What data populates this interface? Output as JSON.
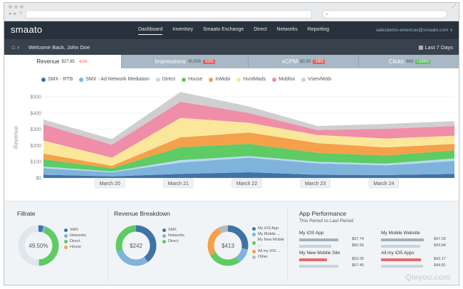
{
  "browser": {
    "nav_back": "◂",
    "nav_forward": "▸",
    "new_tab": "+"
  },
  "app": {
    "logo": "smaato",
    "menu": [
      "Dashboard",
      "Inventory",
      "Smaato Exchange",
      "Direct",
      "Networks",
      "Reporting"
    ],
    "active_menu": "Dashboard",
    "account": "salesdemo-americas@smaato.com ∨"
  },
  "subbar": {
    "breadcrumb_sep": "›",
    "welcome": "Welcome Back, John Doe",
    "date_range": "Last 7 Days"
  },
  "tabs": [
    {
      "label": "Revenue",
      "value": "$27.85",
      "change": "-61%",
      "trend": "neg",
      "active": true
    },
    {
      "label": "Impressions",
      "value": "30,009",
      "change": "-52%",
      "trend": "neg",
      "active": false
    },
    {
      "label": "eCPM",
      "value": "$0.93",
      "change": "-18%",
      "trend": "neg",
      "active": false
    },
    {
      "label": "Clicks",
      "value": "960",
      "change": "+195%",
      "trend": "pos",
      "active": false
    }
  ],
  "legend": [
    {
      "name": "SMX - RTB",
      "color": "#3f73a8"
    },
    {
      "name": "SMX - Ad Network Mediation",
      "color": "#7fb3dc"
    },
    {
      "name": "Direct",
      "color": "#b9daf0"
    },
    {
      "name": "House",
      "color": "#5ecb64"
    },
    {
      "name": "InMobi",
      "color": "#f5a04a"
    },
    {
      "name": "HuntMads",
      "color": "#fbe79a"
    },
    {
      "name": "Mobfox",
      "color": "#ef8ea8"
    },
    {
      "name": "VservMobi",
      "color": "#cfcfcf"
    }
  ],
  "chart_data": {
    "type": "area",
    "ylabel": "Revenue",
    "ylim": [
      0,
      500
    ],
    "yticks": [
      "$0",
      "$100",
      "$200",
      "$300",
      "$400",
      "$500"
    ],
    "categories": [
      "March 20",
      "March 21",
      "March 22",
      "March 23",
      "March 24"
    ],
    "x": [
      0,
      1,
      2,
      3,
      4,
      5,
      6
    ],
    "category_positions": [
      1,
      2,
      3,
      4,
      5
    ],
    "series": [
      {
        "name": "SMX - RTB",
        "color": "#3f73a8",
        "values": [
          20,
          10,
          25,
          35,
          20,
          18,
          25
        ]
      },
      {
        "name": "SMX - Ad Network Mediation",
        "color": "#7fb3dc",
        "values": [
          40,
          25,
          70,
          90,
          70,
          60,
          80
        ]
      },
      {
        "name": "Direct",
        "color": "#b9daf0",
        "values": [
          10,
          5,
          15,
          10,
          10,
          10,
          15
        ]
      },
      {
        "name": "House",
        "color": "#5ecb64",
        "values": [
          45,
          20,
          80,
          75,
          55,
          50,
          50
        ]
      },
      {
        "name": "InMobi",
        "color": "#f5a04a",
        "values": [
          35,
          15,
          60,
          70,
          60,
          50,
          40
        ]
      },
      {
        "name": "HuntMads",
        "color": "#fbe79a",
        "values": [
          80,
          50,
          120,
          60,
          50,
          55,
          50
        ]
      },
      {
        "name": "Mobfox",
        "color": "#ef8ea8",
        "values": [
          100,
          80,
          100,
          60,
          30,
          60,
          60
        ]
      },
      {
        "name": "VservMobi",
        "color": "#cfcfcf",
        "values": [
          30,
          35,
          60,
          40,
          25,
          30,
          30
        ]
      }
    ]
  },
  "fillrate": {
    "title": "Fillrate",
    "center": "49.50%",
    "legend": [
      {
        "name": "SMX",
        "color": "#3f73a8",
        "value": 4
      },
      {
        "name": "Networks",
        "color": "#7fb3dc",
        "value": 2
      },
      {
        "name": "Direct",
        "color": "#5ecb64",
        "value": 43.5
      },
      {
        "name": "House",
        "color": "#f5a04a",
        "value": 0
      }
    ],
    "remainder_color": "#dfe6ec"
  },
  "revenue_breakdown": {
    "title": "Revenue Breakdown",
    "donut1": {
      "center": "$242",
      "legend": [
        {
          "name": "SMX",
          "color": "#3f73a8",
          "value": 40
        },
        {
          "name": "Networks",
          "color": "#7fb3dc",
          "value": 30
        },
        {
          "name": "Direct",
          "color": "#5ecb64",
          "value": 30
        }
      ]
    },
    "donut2": {
      "center": "$413",
      "legend": [
        {
          "name": "My iOS App",
          "color": "#3f73a8",
          "value": 28
        },
        {
          "name": "My Mobile ...",
          "color": "#7fb3dc",
          "value": 12
        },
        {
          "name": "My New Mobile ...",
          "color": "#5ecb64",
          "value": 27
        },
        {
          "name": "All my iOS ...",
          "color": "#f5a04a",
          "value": 25
        },
        {
          "name": "Other",
          "color": "#b9b9b9",
          "value": 8
        }
      ]
    }
  },
  "app_performance": {
    "title": "App Performance",
    "subtitle": "This Period vs Last Period",
    "items": [
      {
        "name": "My iOS App",
        "current": "$97.74",
        "last": "$80.56",
        "current_pct": 78,
        "last_pct": 64
      },
      {
        "name": "My Mobile Website",
        "current": "$47.59",
        "last": "$43.84",
        "current_pct": 85,
        "last_pct": 78
      },
      {
        "name": "My New Mobile Site",
        "current": "$52.05",
        "last": "$67.45",
        "current_pct": 56,
        "last_pct": 78,
        "highlight": true
      },
      {
        "name": "All my iOS Apps",
        "current": "$42.17",
        "last": "$44.81",
        "current_pct": 80,
        "last_pct": 84,
        "highlight": true
      }
    ]
  },
  "watermark": "Qieyou.com"
}
